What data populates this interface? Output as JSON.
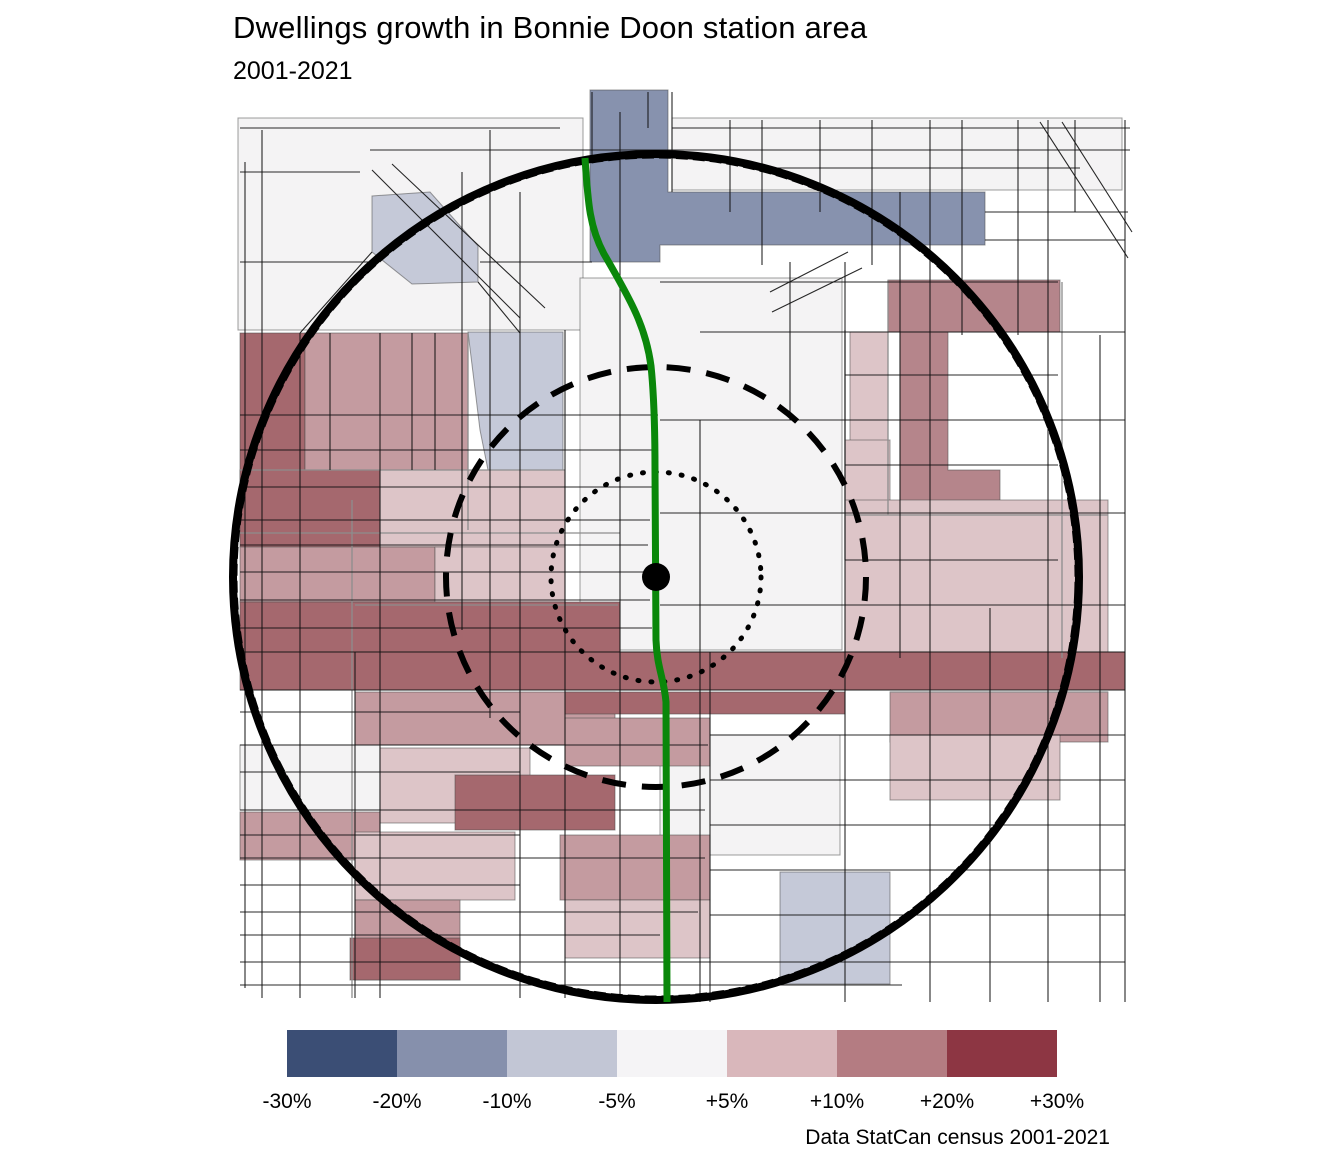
{
  "header": {
    "title": "Dwellings growth in Bonnie Doon station area",
    "subtitle": "2001-2021"
  },
  "legend": {
    "tick_labels": [
      "-30%",
      "-20%",
      "-10%",
      "-5%",
      "+5%",
      "+10%",
      "+20%",
      "+30%"
    ],
    "colors": [
      "#3b4e75",
      "#8690ac",
      "#c2c6d5",
      "#f5f4f6",
      "#d9b7bb",
      "#b47c82",
      "#8d3643"
    ]
  },
  "footer": {
    "caption": "Data StatCan census 2001-2021"
  },
  "map": {
    "lrt_line_color": "#0a870a",
    "ring_color": "#000000",
    "station_dot_color": "#000000",
    "fills": {
      "blue_med": "#8792ae",
      "blue_light": "#c5c9d8",
      "neutral": "#f4f3f4",
      "pink_light": "#ddc5c8",
      "pink_med": "#c49ba0",
      "red_med2": "#b5858b",
      "red_dark": "#a5686e"
    }
  }
}
